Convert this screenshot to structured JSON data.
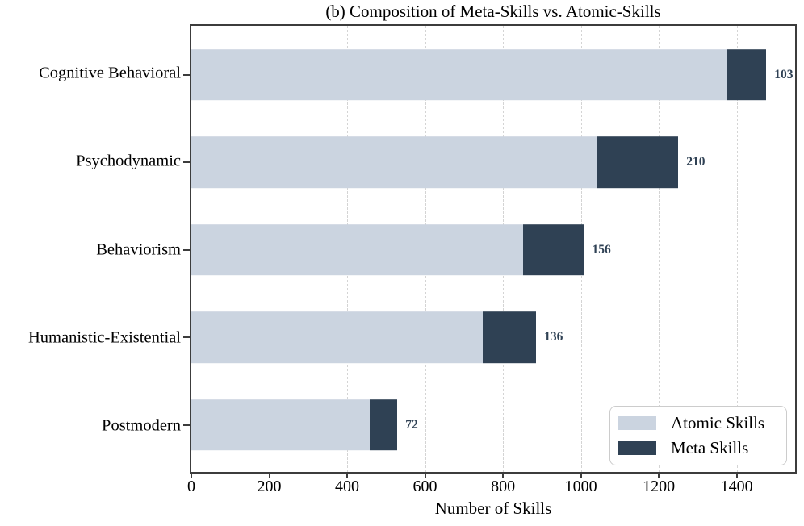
{
  "chart_data": {
    "type": "bar",
    "orientation": "horizontal",
    "stacked": true,
    "title": "(b) Composition of Meta-Skills vs. Atomic-Skills",
    "categories": [
      "Cognitive Behavioral",
      "Psychodynamic",
      "Behaviorism",
      "Humanistic-Existential",
      "Postmodern"
    ],
    "series": [
      {
        "name": "Atomic Skills",
        "color": "#cbd4e0",
        "values": [
          1373,
          1040,
          852,
          749,
          457
        ]
      },
      {
        "name": "Meta Skills",
        "color": "#2f4154",
        "values": [
          103,
          210,
          156,
          136,
          72
        ]
      }
    ],
    "value_labels": [
      "103",
      "210",
      "156",
      "136",
      "72"
    ],
    "value_label_color": "#2f4154",
    "xlabel": "Number of Skills",
    "xlim": [
      0,
      1550
    ],
    "xticks": [
      0,
      200,
      400,
      600,
      800,
      1000,
      1200,
      1400
    ],
    "grid": {
      "axis": "x",
      "style": "dashed",
      "color": "#d4d4d4"
    },
    "legend_position": "lower right"
  }
}
